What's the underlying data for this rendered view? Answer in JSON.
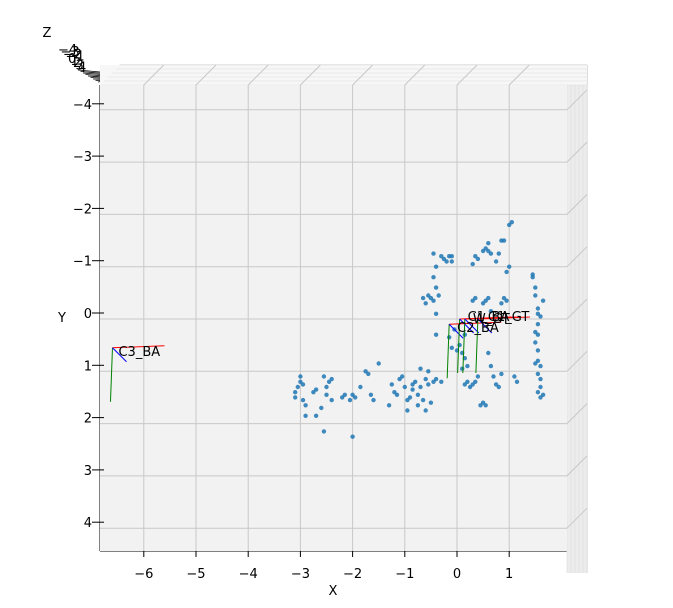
{
  "chart_data": {
    "type": "scatter",
    "projection": "3d-top-view",
    "xlabel": "X",
    "ylabel": "Y",
    "zlabel": "Z",
    "xlim": [
      -6.8,
      2.1
    ],
    "ylim": [
      4.6,
      -4.4
    ],
    "x_ticks": [
      -6,
      -5,
      -4,
      -3,
      -2,
      -1,
      0,
      1
    ],
    "y_ticks": [
      -4,
      -3,
      -2,
      -1,
      0,
      1,
      2,
      3,
      4
    ],
    "x_tick_labels": [
      "−6",
      "−5",
      "−4",
      "−3",
      "−2",
      "−1",
      "0",
      "1"
    ],
    "y_tick_labels": [
      "−4",
      "−3",
      "−2",
      "−1",
      "0",
      "1",
      "2",
      "3",
      "4"
    ],
    "z_tick_labels": [
      "−4",
      "−3",
      "−2",
      "−1",
      "0",
      "1",
      "2",
      "3",
      "4"
    ],
    "grid": true,
    "point_color": "#1f77b4",
    "cameras": [
      {
        "label": "C3_BA",
        "x": -6.6,
        "y": 0.55
      },
      {
        "label": "C2_BA",
        "x": -0.15,
        "y": 0.1
      },
      {
        "label": "C1_BA",
        "x": 0.05,
        "y": 0.0
      },
      {
        "label": "W_GT",
        "x": 0.15,
        "y": 0.0
      },
      {
        "label": "C1_GT",
        "x": 0.4,
        "y": 0.0
      }
    ],
    "points": [
      [
        -3.1,
        1.4
      ],
      [
        -3.05,
        1.3
      ],
      [
        -3.0,
        1.1
      ],
      [
        -3.0,
        1.2
      ],
      [
        -2.95,
        1.25
      ],
      [
        -3.1,
        1.5
      ],
      [
        -2.95,
        1.55
      ],
      [
        -2.9,
        1.65
      ],
      [
        -2.9,
        1.85
      ],
      [
        -2.75,
        1.4
      ],
      [
        -2.7,
        1.35
      ],
      [
        -2.7,
        1.85
      ],
      [
        -2.6,
        1.7
      ],
      [
        -2.55,
        1.1
      ],
      [
        -2.5,
        1.3
      ],
      [
        -2.5,
        1.45
      ],
      [
        -2.45,
        1.2
      ],
      [
        -2.4,
        1.15
      ],
      [
        -2.4,
        1.55
      ],
      [
        -2.55,
        2.15
      ],
      [
        -2.2,
        1.5
      ],
      [
        -2.15,
        1.45
      ],
      [
        -2.05,
        1.55
      ],
      [
        -2.0,
        1.45
      ],
      [
        -1.95,
        1.5
      ],
      [
        -2.0,
        2.25
      ],
      [
        -1.85,
        1.3
      ],
      [
        -1.75,
        1.0
      ],
      [
        -1.7,
        1.05
      ],
      [
        -1.65,
        1.45
      ],
      [
        -1.6,
        1.55
      ],
      [
        -1.5,
        0.85
      ],
      [
        -1.3,
        1.65
      ],
      [
        -1.25,
        1.25
      ],
      [
        -1.2,
        1.4
      ],
      [
        -1.15,
        1.45
      ],
      [
        -1.1,
        1.15
      ],
      [
        -1.05,
        1.1
      ],
      [
        -1.0,
        1.3
      ],
      [
        -0.95,
        1.55
      ],
      [
        -0.95,
        1.75
      ],
      [
        -0.9,
        1.5
      ],
      [
        -0.85,
        1.35
      ],
      [
        -0.85,
        1.25
      ],
      [
        -0.8,
        1.2
      ],
      [
        -0.75,
        1.45
      ],
      [
        -0.75,
        1.65
      ],
      [
        -0.7,
        0.95
      ],
      [
        -0.7,
        1.3
      ],
      [
        -0.65,
        1.55
      ],
      [
        -0.6,
        1.75
      ],
      [
        -0.6,
        1.15
      ],
      [
        -0.55,
        1.0
      ],
      [
        -0.55,
        1.25
      ],
      [
        -0.5,
        1.6
      ],
      [
        -0.45,
        1.2
      ],
      [
        -0.4,
        1.15
      ],
      [
        -0.3,
        1.2
      ],
      [
        -0.65,
        -0.4
      ],
      [
        -0.6,
        -0.3
      ],
      [
        -0.55,
        -0.45
      ],
      [
        -0.5,
        -0.4
      ],
      [
        -0.45,
        -0.35
      ],
      [
        -0.4,
        -0.1
      ],
      [
        -0.4,
        0.3
      ],
      [
        -0.45,
        -0.8
      ],
      [
        -0.4,
        -1.0
      ],
      [
        -0.4,
        -0.6
      ],
      [
        -0.35,
        -0.45
      ],
      [
        -0.45,
        -1.25
      ],
      [
        -0.3,
        -1.2
      ],
      [
        -0.25,
        -1.15
      ],
      [
        -0.2,
        -1.1
      ],
      [
        -0.15,
        -1.2
      ],
      [
        -0.1,
        -1.1
      ],
      [
        -0.1,
        -1.2
      ],
      [
        -0.15,
        0.35
      ],
      [
        -0.1,
        0.55
      ],
      [
        -0.05,
        0.2
      ],
      [
        0.0,
        0.6
      ],
      [
        0.05,
        0.5
      ],
      [
        0.1,
        0.65
      ],
      [
        0.1,
        0.95
      ],
      [
        0.15,
        0.3
      ],
      [
        0.15,
        0.75
      ],
      [
        0.2,
        0.9
      ],
      [
        0.2,
        1.2
      ],
      [
        0.15,
        1.25
      ],
      [
        0.25,
        1.3
      ],
      [
        0.3,
        1.25
      ],
      [
        0.35,
        1.2
      ],
      [
        0.4,
        1.1
      ],
      [
        0.45,
        1.65
      ],
      [
        0.5,
        1.6
      ],
      [
        0.55,
        1.65
      ],
      [
        0.3,
        -0.35
      ],
      [
        0.35,
        -0.4
      ],
      [
        0.3,
        -1.05
      ],
      [
        0.35,
        -1.2
      ],
      [
        0.4,
        -1.15
      ],
      [
        0.5,
        -1.3
      ],
      [
        0.55,
        -1.35
      ],
      [
        0.6,
        -1.45
      ],
      [
        0.6,
        -1.3
      ],
      [
        0.65,
        -1.25
      ],
      [
        0.5,
        -0.3
      ],
      [
        0.55,
        -0.35
      ],
      [
        0.6,
        -0.4
      ],
      [
        0.65,
        -0.15
      ],
      [
        0.6,
        0.65
      ],
      [
        0.65,
        0.9
      ],
      [
        0.7,
        1.1
      ],
      [
        0.75,
        1.25
      ],
      [
        0.8,
        1.3
      ],
      [
        0.85,
        1.05
      ],
      [
        0.75,
        -1.1
      ],
      [
        0.8,
        -1.25
      ],
      [
        0.85,
        -1.5
      ],
      [
        0.9,
        -1.5
      ],
      [
        0.85,
        -0.3
      ],
      [
        0.9,
        -0.4
      ],
      [
        0.95,
        -0.35
      ],
      [
        0.95,
        -0.9
      ],
      [
        1.0,
        -1.0
      ],
      [
        1.0,
        -1.8
      ],
      [
        1.05,
        -1.85
      ],
      [
        1.1,
        1.1
      ],
      [
        1.15,
        1.2
      ],
      [
        1.45,
        -0.85
      ],
      [
        1.45,
        -0.8
      ],
      [
        1.5,
        -0.6
      ],
      [
        1.5,
        -0.45
      ],
      [
        1.55,
        -0.1
      ],
      [
        1.55,
        -0.2
      ],
      [
        1.5,
        0.25
      ],
      [
        1.55,
        0.3
      ],
      [
        1.5,
        0.45
      ],
      [
        1.55,
        0.6
      ],
      [
        1.55,
        0.8
      ],
      [
        1.5,
        0.85
      ],
      [
        1.6,
        0.9
      ],
      [
        1.55,
        1.05
      ],
      [
        1.6,
        1.15
      ],
      [
        1.6,
        1.3
      ],
      [
        1.55,
        1.4
      ],
      [
        1.65,
        1.45
      ],
      [
        1.6,
        1.5
      ],
      [
        1.65,
        -0.35
      ],
      [
        1.6,
        -0.05
      ],
      [
        1.55,
        0.1
      ]
    ]
  }
}
